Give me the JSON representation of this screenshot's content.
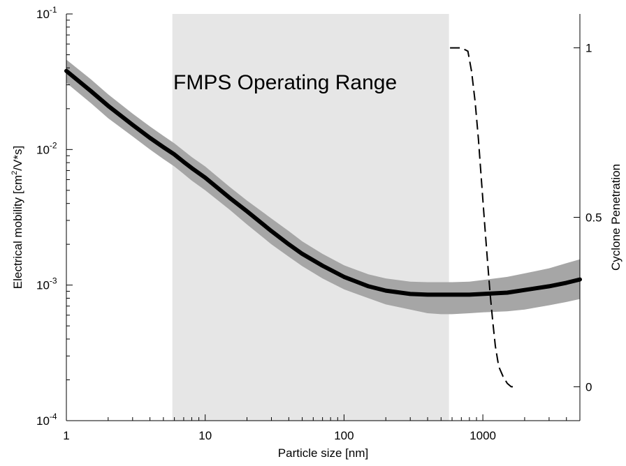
{
  "chart_data": {
    "type": "line",
    "title": "",
    "xlabel": "Particle size [nm]",
    "ylabel_left": {
      "main": "Electrical mobility [cm",
      "sup": "2",
      "rest": "/V*s]"
    },
    "ylabel_right": "Cyclone Penetration",
    "x_scale": "log",
    "xlim": [
      1,
      5000
    ],
    "x_ticks": [
      {
        "value": 1,
        "label": "1"
      },
      {
        "value": 10,
        "label": "10"
      },
      {
        "value": 100,
        "label": "100"
      },
      {
        "value": 1000,
        "label": "1000"
      }
    ],
    "y_left_scale": "log",
    "ylim_left": [
      0.0001,
      0.1
    ],
    "y_left_ticks": [
      {
        "value": 0.1,
        "base": "10",
        "exp": "-1"
      },
      {
        "value": 0.01,
        "base": "10",
        "exp": "-2"
      },
      {
        "value": 0.001,
        "base": "10",
        "exp": "-3"
      },
      {
        "value": 0.0001,
        "base": "10",
        "exp": "-4"
      }
    ],
    "y_right_scale": "linear",
    "ylim_right": [
      -0.1,
      1.1
    ],
    "y_right_ticks": [
      {
        "value": 0,
        "label": "0"
      },
      {
        "value": 0.5,
        "label": "0.5"
      },
      {
        "value": 1,
        "label": "1"
      }
    ],
    "grid": false,
    "shaded_region": {
      "x_start": 5.8,
      "x_end": 570,
      "label": "FMPS Operating Range",
      "color": "#e6e6e6"
    },
    "series": [
      {
        "axis": "left",
        "style": "solid",
        "color": "#000000",
        "x": [
          1,
          1.5,
          2,
          3,
          4,
          5,
          6,
          7,
          8,
          10,
          15,
          20,
          30,
          40,
          50,
          70,
          100,
          150,
          200,
          300,
          400,
          500,
          600,
          800,
          1000,
          1500,
          2000,
          3000,
          4000,
          5000
        ],
        "y": [
          0.038,
          0.027,
          0.021,
          0.0152,
          0.0122,
          0.0104,
          0.0092,
          0.0081,
          0.0073,
          0.0062,
          0.0044,
          0.0035,
          0.0025,
          0.002,
          0.0017,
          0.00139,
          0.00115,
          0.00098,
          0.00091,
          0.00086,
          0.00085,
          0.00085,
          0.00085,
          0.00085,
          0.00086,
          0.00088,
          0.00092,
          0.00098,
          0.00104,
          0.0011
        ],
        "band_upper": [
          0.046,
          0.033,
          0.0255,
          0.0184,
          0.0148,
          0.0126,
          0.0111,
          0.0098,
          0.0088,
          0.0075,
          0.0053,
          0.0042,
          0.0031,
          0.0025,
          0.0021,
          0.0017,
          0.0014,
          0.0012,
          0.00112,
          0.00106,
          0.00105,
          0.00105,
          0.00105,
          0.00106,
          0.00109,
          0.00115,
          0.00122,
          0.00133,
          0.00145,
          0.00155
        ],
        "band_lower": [
          0.031,
          0.022,
          0.017,
          0.0125,
          0.01,
          0.0085,
          0.0075,
          0.0066,
          0.0059,
          0.005,
          0.0036,
          0.0028,
          0.002,
          0.00162,
          0.00138,
          0.00112,
          0.00093,
          0.0008,
          0.00072,
          0.00066,
          0.00062,
          0.00061,
          0.00061,
          0.00062,
          0.00063,
          0.00064,
          0.00066,
          0.00071,
          0.00075,
          0.00079
        ],
        "band_color": "#a6a6a6"
      },
      {
        "axis": "right",
        "style": "dashed",
        "color": "#000000",
        "x": [
          580,
          700,
          780,
          830,
          880,
          930,
          980,
          1030,
          1080,
          1130,
          1180,
          1230,
          1300,
          1400,
          1500,
          1600,
          1700
        ],
        "y": [
          1.0,
          1.0,
          0.99,
          0.93,
          0.84,
          0.73,
          0.6,
          0.48,
          0.37,
          0.27,
          0.19,
          0.12,
          0.06,
          0.03,
          0.01,
          0.0,
          0.0
        ]
      }
    ]
  }
}
